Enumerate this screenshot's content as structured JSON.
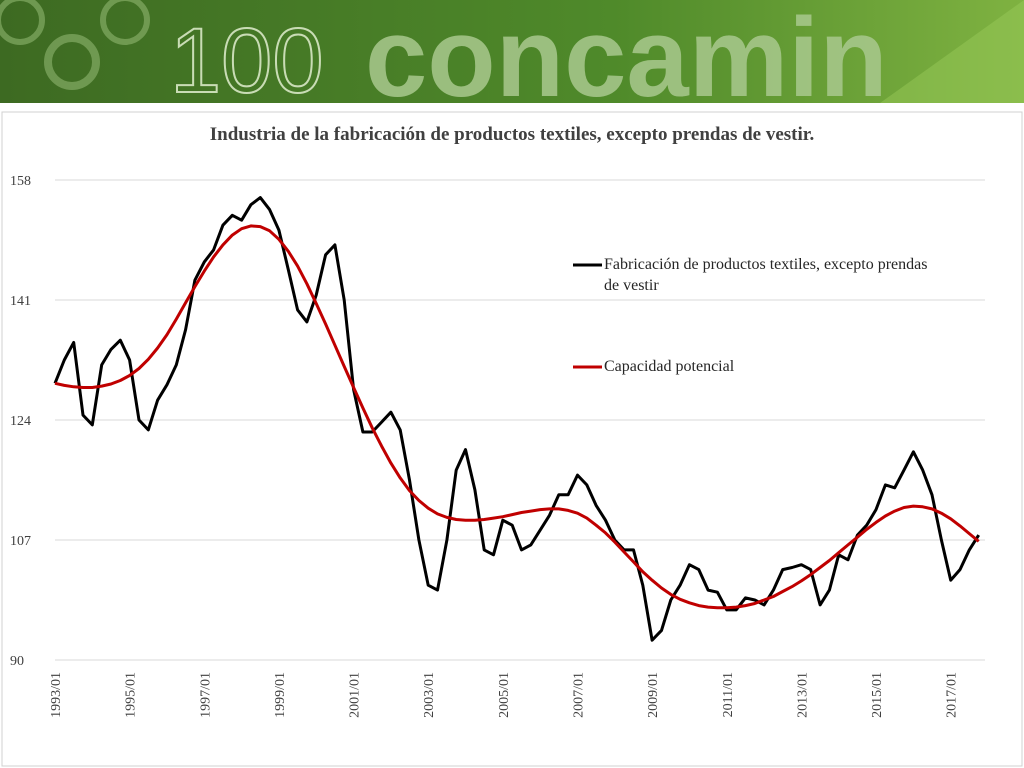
{
  "banner": {
    "number": "100",
    "text": "concamin"
  },
  "chart_data": {
    "type": "line",
    "title": "Industria de la fabricación de productos textiles, excepto prendas de vestir.",
    "categories": [
      "1993/01",
      null,
      null,
      null,
      null,
      null,
      null,
      null,
      "1995/01",
      null,
      null,
      null,
      null,
      null,
      null,
      null,
      "1997/01",
      null,
      null,
      null,
      null,
      null,
      null,
      null,
      "1999/01",
      null,
      null,
      null,
      null,
      null,
      null,
      null,
      "2001/01",
      null,
      null,
      null,
      null,
      null,
      null,
      null,
      "2003/01",
      null,
      null,
      null,
      null,
      null,
      null,
      null,
      "2005/01",
      null,
      null,
      null,
      null,
      null,
      null,
      null,
      "2007/01",
      null,
      null,
      null,
      null,
      null,
      null,
      null,
      "2009/01",
      null,
      null,
      null,
      null,
      null,
      null,
      null,
      "2011/01",
      null,
      null,
      null,
      null,
      null,
      null,
      null,
      "2013/01",
      null,
      null,
      null,
      null,
      null,
      null,
      null,
      "2015/01",
      null,
      null,
      null,
      null,
      null,
      null,
      null,
      "2017/01",
      null,
      null,
      null
    ],
    "series": [
      {
        "name": "Fabricación de productos textiles, excepto prendas de vestir",
        "color": "#000000",
        "values": [
          129.2,
          132.5,
          135,
          124.7,
          123.3,
          131.8,
          134,
          135.3,
          132.5,
          124,
          122.6,
          126.8,
          129,
          131.8,
          136.8,
          143.8,
          146.4,
          148.1,
          151.6,
          153,
          152.3,
          154.5,
          155.5,
          153.8,
          150.9,
          145.3,
          139.6,
          137.9,
          141.7,
          147.4,
          148.8,
          141,
          128.3,
          122.3,
          122.3,
          123.7,
          125.1,
          122.6,
          115.5,
          107,
          100.6,
          99.9,
          107,
          116.9,
          119.8,
          114.1,
          105.6,
          104.9,
          109.8,
          109.1,
          105.6,
          106.3,
          108.4,
          110.5,
          113.4,
          113.4,
          116.2,
          114.8,
          111.9,
          109.8,
          107,
          105.6,
          105.6,
          100.6,
          92.8,
          94.2,
          98.5,
          100.6,
          103.5,
          102.8,
          99.9,
          99.6,
          97.1,
          97.1,
          98.8,
          98.5,
          97.8,
          99.9,
          102.8,
          103.1,
          103.5,
          102.8,
          97.8,
          99.9,
          104.9,
          104.2,
          107.7,
          109.1,
          111.3,
          114.8,
          114.4,
          116.9,
          119.5,
          116.9,
          113.4,
          107,
          101.3,
          102.8,
          105.6,
          107.7
        ]
      },
      {
        "name": "Capacidad potencial",
        "color": "#c00000",
        "values": [
          129.2,
          128.9,
          128.7,
          128.6,
          128.6,
          128.8,
          129.1,
          129.6,
          130.3,
          131.3,
          132.6,
          134.2,
          136.1,
          138.3,
          140.6,
          142.9,
          145.1,
          147.1,
          148.8,
          150.2,
          151.1,
          151.5,
          151.4,
          150.8,
          149.6,
          147.9,
          145.8,
          143.3,
          140.5,
          137.6,
          134.6,
          131.6,
          128.6,
          125.7,
          122.9,
          120.3,
          117.9,
          115.8,
          114,
          112.6,
          111.5,
          110.7,
          110.2,
          109.9,
          109.8,
          109.8,
          109.9,
          110.1,
          110.3,
          110.6,
          110.9,
          111.1,
          111.3,
          111.4,
          111.4,
          111.2,
          110.8,
          110.1,
          109.1,
          108,
          106.7,
          105.3,
          103.9,
          102.5,
          101.3,
          100.2,
          99.3,
          98.6,
          98.1,
          97.7,
          97.5,
          97.4,
          97.4,
          97.5,
          97.7,
          98,
          98.5,
          99,
          99.7,
          100.4,
          101.2,
          102.1,
          103.1,
          104.1,
          105.2,
          106.3,
          107.4,
          108.5,
          109.5,
          110.4,
          111.1,
          111.6,
          111.8,
          111.7,
          111.4,
          110.8,
          110,
          109,
          107.9,
          106.8
        ]
      }
    ],
    "ylim": [
      90,
      158
    ],
    "yticks": [
      90,
      107,
      124,
      141,
      158
    ],
    "grid": true,
    "legend": "right"
  }
}
